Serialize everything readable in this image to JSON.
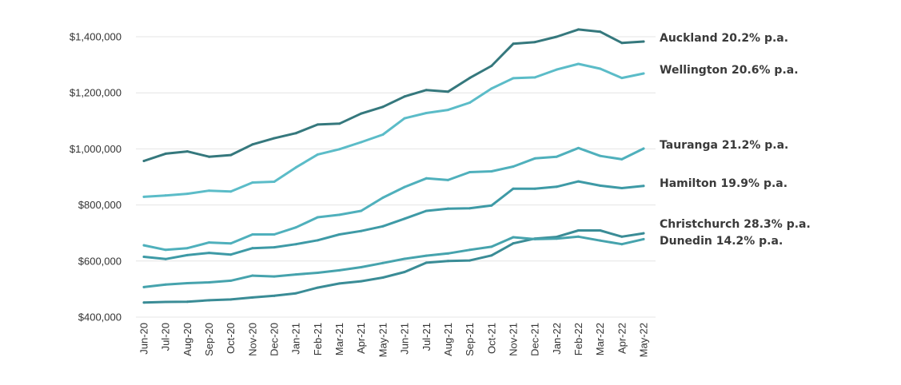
{
  "chart_data": {
    "type": "line",
    "title": "",
    "xlabel": "",
    "ylabel": "",
    "categories": [
      "Jun-20",
      "Jul-20",
      "Aug-20",
      "Sep-20",
      "Oct-20",
      "Nov-20",
      "Dec-20",
      "Jan-21",
      "Feb-21",
      "Mar-21",
      "Apr-21",
      "May-21",
      "Jun-21",
      "Jul-21",
      "Aug-21",
      "Sep-21",
      "Oct-21",
      "Nov-21",
      "Dec-21",
      "Jan-22",
      "Feb-22",
      "Mar-22",
      "Apr-22",
      "May-22"
    ],
    "y_ticks": [
      400000,
      600000,
      800000,
      1000000,
      1200000,
      1400000
    ],
    "y_tick_labels": [
      "$400,000",
      "$600,000",
      "$800,000",
      "$1,000,000",
      "$1,200,000",
      "$1,400,000"
    ],
    "ylim": [
      400000,
      1450000
    ],
    "grid": true,
    "legend": "end labels at right of lines",
    "series": [
      {
        "key": "auckland",
        "name": "Auckland",
        "label_text": "Auckland 20.2% p.a.",
        "color": "#35787d",
        "values": [
          957000,
          983000,
          991000,
          972000,
          978000,
          1016000,
          1038000,
          1056000,
          1087000,
          1090000,
          1126000,
          1150000,
          1187000,
          1210000,
          1204000,
          1253000,
          1296000,
          1375000,
          1381000,
          1400000,
          1426000,
          1418000,
          1378000,
          1383000
        ]
      },
      {
        "key": "wellington",
        "name": "Wellington",
        "label_text": "Wellington 20.6% p.a.",
        "color": "#5bbcc8",
        "values": [
          829000,
          834000,
          840000,
          851000,
          848000,
          880000,
          883000,
          934000,
          980000,
          999000,
          1024000,
          1051000,
          1109000,
          1128000,
          1139000,
          1165000,
          1215000,
          1252000,
          1255000,
          1283000,
          1303000,
          1286000,
          1253000,
          1269000
        ]
      },
      {
        "key": "tauranga",
        "name": "Tauranga",
        "label_text": "Tauranga 21.2% p.a.",
        "color": "#4fb0bc",
        "values": [
          656000,
          640000,
          646000,
          666000,
          663000,
          695000,
          695000,
          720000,
          756000,
          765000,
          779000,
          826000,
          864000,
          895000,
          889000,
          917000,
          920000,
          937000,
          966000,
          972000,
          1003000,
          975000,
          963000,
          1001000
        ]
      },
      {
        "key": "hamilton",
        "name": "Hamilton",
        "label_text": "Hamilton 19.9% p.a.",
        "color": "#3e9aa6",
        "values": [
          615000,
          607000,
          621000,
          629000,
          623000,
          646000,
          649000,
          660000,
          674000,
          695000,
          707000,
          724000,
          751000,
          779000,
          787000,
          788000,
          798000,
          858000,
          858000,
          865000,
          884000,
          869000,
          860000,
          868000
        ]
      },
      {
        "key": "christchurch",
        "name": "Christchurch",
        "label_text": "Christchurch 28.3% p.a.",
        "color": "#3a8c96",
        "values": [
          452000,
          454000,
          455000,
          460000,
          463000,
          470000,
          476000,
          485000,
          505000,
          520000,
          528000,
          541000,
          561000,
          594000,
          600000,
          602000,
          620000,
          663000,
          680000,
          686000,
          709000,
          709000,
          687000,
          699000
        ]
      },
      {
        "key": "dunedin",
        "name": "Dunedin",
        "label_text": "Dunedin 14.2% p.a.",
        "color": "#46a3ad",
        "values": [
          507000,
          516000,
          521000,
          524000,
          530000,
          548000,
          545000,
          552000,
          558000,
          567000,
          578000,
          593000,
          608000,
          619000,
          627000,
          640000,
          651000,
          685000,
          678000,
          680000,
          687000,
          673000,
          660000,
          678000
        ]
      }
    ]
  }
}
